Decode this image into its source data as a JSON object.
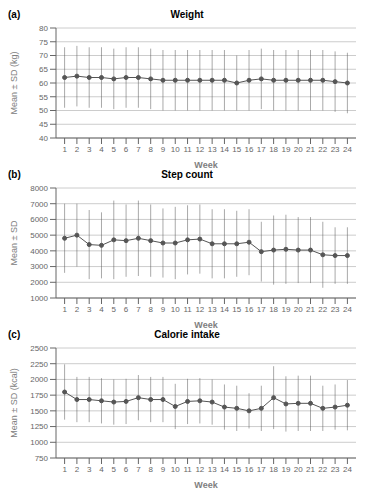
{
  "chart_data": [
    {
      "type": "line",
      "title": "Weight",
      "annotations": [
        "(a)"
      ],
      "xlabel": "Week",
      "ylabel": "Mean ± SD (kg)",
      "x": [
        1,
        2,
        3,
        4,
        5,
        6,
        7,
        8,
        9,
        10,
        11,
        12,
        13,
        14,
        15,
        16,
        17,
        18,
        19,
        20,
        21,
        22,
        23,
        24
      ],
      "series": [
        {
          "color": "#555555",
          "marker": "circle",
          "line_style": "solid",
          "values": [
            62,
            62.5,
            62,
            62,
            61.5,
            62,
            62,
            61.5,
            61,
            61,
            61,
            61,
            61,
            61,
            60,
            61,
            61.5,
            61,
            61,
            61,
            61,
            61,
            60.5,
            60
          ],
          "errors": [
            11,
            11,
            11,
            11,
            11,
            11,
            11,
            11,
            11,
            11,
            11,
            11,
            11,
            11,
            10,
            11,
            11,
            11,
            11,
            11,
            11,
            11,
            11,
            11
          ]
        }
      ],
      "xlim": [
        0.3,
        24.7
      ],
      "xticks": [
        1,
        2,
        3,
        4,
        5,
        6,
        7,
        8,
        9,
        10,
        11,
        12,
        13,
        14,
        15,
        16,
        17,
        18,
        19,
        20,
        21,
        22,
        23,
        24
      ],
      "ylim": [
        40,
        80
      ],
      "yticks": [
        40,
        45,
        50,
        55,
        60,
        65,
        70,
        75,
        80
      ],
      "grid": true
    },
    {
      "type": "line",
      "title": "Step count",
      "annotations": [
        "(b)"
      ],
      "xlabel": "Week",
      "ylabel": "Mean ± SD",
      "x": [
        1,
        2,
        3,
        4,
        5,
        6,
        7,
        8,
        9,
        10,
        11,
        12,
        13,
        14,
        15,
        16,
        17,
        18,
        19,
        20,
        21,
        22,
        23,
        24
      ],
      "series": [
        {
          "color": "#555555",
          "marker": "circle",
          "line_style": "solid",
          "values": [
            4800,
            5000,
            4400,
            4350,
            4700,
            4650,
            4800,
            4650,
            4500,
            4500,
            4700,
            4750,
            4450,
            4450,
            4450,
            4550,
            3950,
            4050,
            4100,
            4050,
            4050,
            3750,
            3700,
            3700
          ],
          "errors": [
            2200,
            2000,
            2200,
            2100,
            2500,
            2300,
            2400,
            2300,
            2200,
            2300,
            2200,
            2200,
            2200,
            2200,
            2100,
            2100,
            1900,
            2200,
            2200,
            2100,
            2100,
            2100,
            1800,
            1800
          ]
        }
      ],
      "xlim": [
        0.3,
        24.7
      ],
      "xticks": [
        1,
        2,
        3,
        4,
        5,
        6,
        7,
        8,
        9,
        10,
        11,
        12,
        13,
        14,
        15,
        16,
        17,
        18,
        19,
        20,
        21,
        22,
        23,
        24
      ],
      "ylim": [
        1000,
        8000
      ],
      "yticks": [
        1000,
        2000,
        3000,
        4000,
        5000,
        6000,
        7000,
        8000
      ],
      "grid": true
    },
    {
      "type": "line",
      "title": "Calorie intake",
      "annotations": [
        "(c)"
      ],
      "xlabel": "Week",
      "ylabel": "Mean ± SD (kcal)",
      "x": [
        1,
        2,
        3,
        4,
        5,
        6,
        7,
        8,
        9,
        10,
        11,
        12,
        13,
        14,
        15,
        16,
        17,
        18,
        19,
        20,
        21,
        22,
        23,
        24
      ],
      "series": [
        {
          "color": "#555555",
          "marker": "circle",
          "line_style": "solid",
          "values": [
            1800,
            1680,
            1680,
            1660,
            1640,
            1650,
            1710,
            1680,
            1680,
            1570,
            1650,
            1660,
            1640,
            1560,
            1540,
            1500,
            1540,
            1710,
            1610,
            1620,
            1620,
            1540,
            1560,
            1590
          ],
          "errors": [
            440,
            360,
            360,
            360,
            360,
            360,
            360,
            360,
            360,
            360,
            360,
            360,
            360,
            360,
            360,
            280,
            360,
            500,
            440,
            440,
            440,
            360,
            360,
            400
          ]
        }
      ],
      "xlim": [
        0.3,
        24.7
      ],
      "xticks": [
        1,
        2,
        3,
        4,
        5,
        6,
        7,
        8,
        9,
        10,
        11,
        12,
        13,
        14,
        15,
        16,
        17,
        18,
        19,
        20,
        21,
        22,
        23,
        24
      ],
      "ylim": [
        750,
        2500
      ],
      "yticks": [
        750,
        1000,
        1250,
        1500,
        1750,
        2000,
        2250,
        2500
      ],
      "grid": true
    }
  ]
}
